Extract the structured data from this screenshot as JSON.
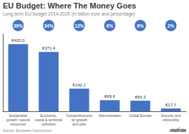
{
  "chart_data": {
    "type": "bar",
    "title": "EU Budget: Where The Money Goes",
    "subtitle": "Long term EU budget 2014-2020 (in billion euro and percentage)",
    "categories": [
      "Sustainable\ngrowth: natural\nresources",
      "Economic,\nsocial & territorial\ncohesion",
      "Competitiveness\nfor growth\nand jobs",
      "Administration",
      "Global Europe",
      "Security and\ncitizenship"
    ],
    "values": [
      420.0,
      371.4,
      142.1,
      69.6,
      66.3,
      17.7
    ],
    "value_labels": [
      "€420.0",
      "€371.4",
      "€142.1",
      "€69.6",
      "€66.3",
      "€17.7"
    ],
    "data_labels": true,
    "percentage_labels": [
      "39%",
      "34%",
      "13%",
      "6%",
      "6%",
      "2%"
    ],
    "color": "#4472c4",
    "ylim": [
      0,
      483
    ],
    "tick_labels": "x",
    "grid": false,
    "annotations": [
      "Source: European Commission",
      "statista"
    ]
  }
}
